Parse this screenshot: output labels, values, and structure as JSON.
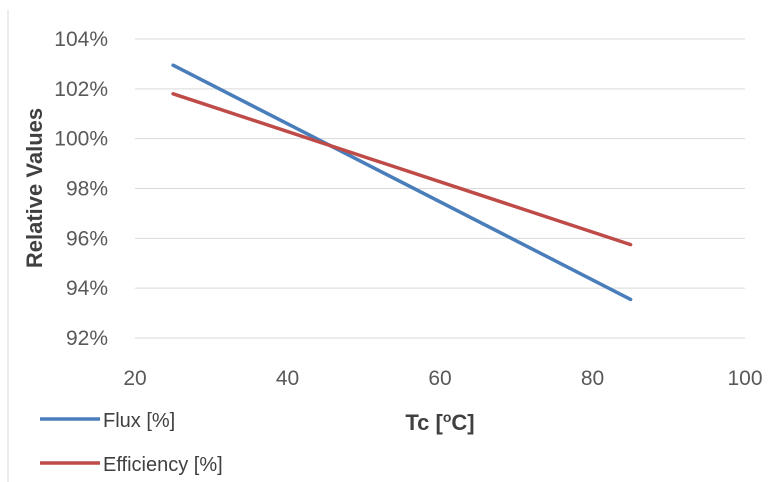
{
  "chart_data": {
    "type": "line",
    "xlabel": "Tc [",
    "xlabel_sup": "o",
    "xlabel_suffix": "C]",
    "ylabel": "Relative Values",
    "xlim": [
      20,
      100
    ],
    "ylim": [
      92,
      104
    ],
    "x_ticks": [
      "20",
      "40",
      "60",
      "80",
      "100"
    ],
    "y_ticks": [
      "104%",
      "102%",
      "100%",
      "98%",
      "96%",
      "94%",
      "92%"
    ],
    "grid": "horizontal",
    "legend_position": "bottom-left",
    "series": [
      {
        "name": "Flux [%]",
        "color": "#4a7ebb",
        "x": [
          25,
          85
        ],
        "y": [
          102.95,
          93.55
        ]
      },
      {
        "name": "Efficiency [%]",
        "color": "#be4b48",
        "x": [
          25,
          85
        ],
        "y": [
          101.8,
          95.75
        ]
      }
    ]
  }
}
